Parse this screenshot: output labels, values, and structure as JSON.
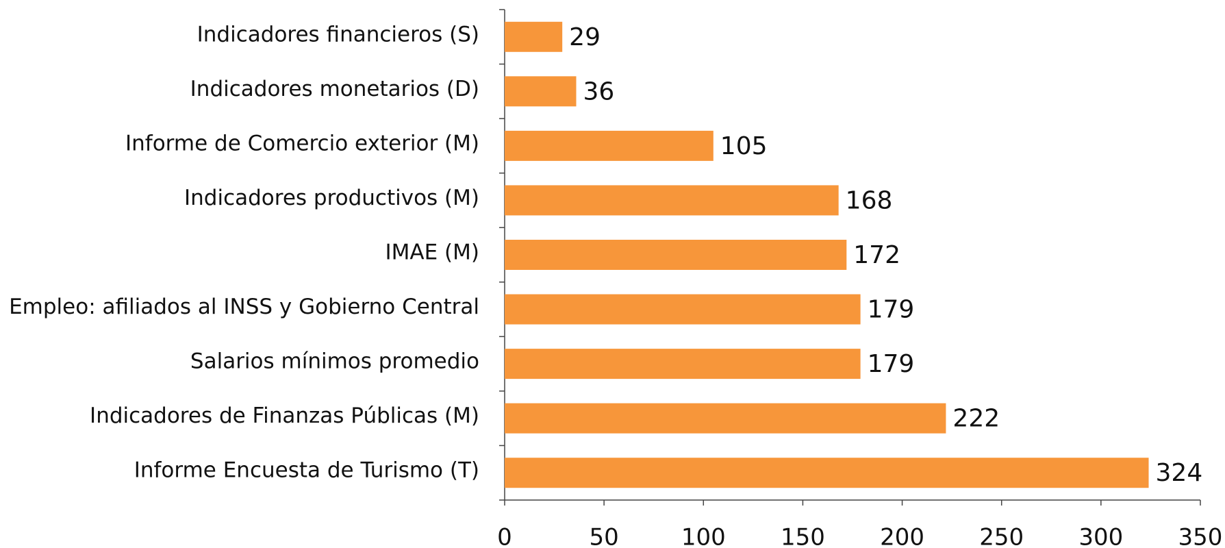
{
  "chart_data": {
    "type": "bar",
    "orientation": "horizontal",
    "categories": [
      "Indicadores financieros (S)",
      "Indicadores monetarios (D)",
      "Informe de Comercio exterior (M)",
      "Indicadores productivos (M)",
      "IMAE (M)",
      "Empleo: afiliados al INSS y Gobierno Central",
      "Salarios mínimos promedio",
      "Indicadores de Finanzas Públicas (M)",
      "Informe Encuesta de Turismo (T)"
    ],
    "values": [
      29,
      36,
      105,
      168,
      172,
      179,
      179,
      222,
      324
    ],
    "color": "#f7963a",
    "xlim": [
      0,
      350
    ],
    "xticks": [
      0,
      50,
      100,
      150,
      200,
      250,
      300,
      350
    ],
    "grid": false
  }
}
